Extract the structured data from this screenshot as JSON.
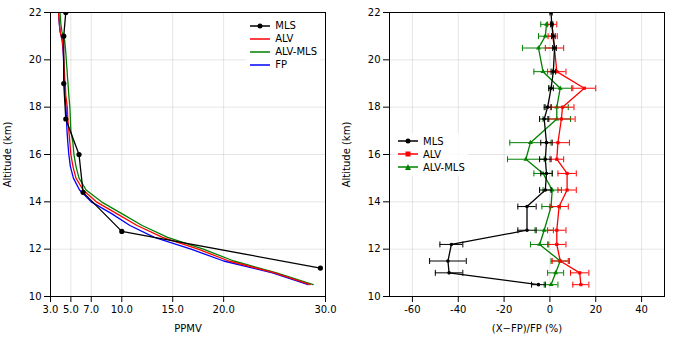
{
  "chart_data": [
    {
      "type": "line",
      "xlabel": "PPMV",
      "ylabel": "Altitude (km)",
      "xlim": [
        3.0,
        30.0
      ],
      "ylim": [
        10.0,
        22.0
      ],
      "xticks": [
        {
          "value": 3.0,
          "label": "3.0"
        },
        {
          "value": 5.0,
          "label": "5.0"
        },
        {
          "value": 7.0,
          "label": "7.0"
        },
        {
          "value": 10.0,
          "label": "10.0"
        },
        {
          "value": 15.0,
          "label": "15.0"
        },
        {
          "value": 20.0,
          "label": "20.0"
        },
        {
          "value": 30.0,
          "label": "30.0"
        }
      ],
      "yticks": [
        10,
        12,
        14,
        16,
        18,
        20,
        22
      ],
      "grid": true,
      "legend": "upper right",
      "series": [
        {
          "name": "MLS",
          "color": "black",
          "marker": "circle",
          "x": [
            4.5,
            4.3,
            4.3,
            4.5,
            5.8,
            6.2,
            10.0,
            29.5
          ],
          "y": [
            22.0,
            21.0,
            19.0,
            17.5,
            16.0,
            14.4,
            12.75,
            11.2
          ]
        },
        {
          "name": "ALV",
          "color": "red",
          "x": [
            28.5,
            25.0,
            20.5,
            17.5,
            14.0,
            11.5,
            9.5,
            7.5,
            6.2,
            5.5,
            5.2,
            5.0,
            4.9,
            4.8,
            4.7,
            4.65,
            4.5,
            4.45,
            4.4,
            4.38,
            4.35,
            4.32,
            4.3,
            4.28,
            4.25,
            4.22,
            4.18,
            4.05,
            3.95,
            3.88,
            3.82,
            3.8
          ],
          "y": [
            10.5,
            11.0,
            11.5,
            12.0,
            12.5,
            13.0,
            13.5,
            14.0,
            14.5,
            15.0,
            15.5,
            16.0,
            16.5,
            17.0,
            17.5,
            18.0,
            18.5,
            19.0,
            19.2,
            19.4,
            19.6,
            19.8,
            20.0,
            20.2,
            20.4,
            20.6,
            20.8,
            21.0,
            21.2,
            21.5,
            21.8,
            22.0
          ]
        },
        {
          "name": "ALV-MLS",
          "color": "green",
          "x": [
            28.8,
            25.2,
            21.0,
            18.0,
            14.5,
            12.0,
            10.0,
            8.0,
            6.5,
            5.8,
            5.5,
            5.3,
            5.2,
            5.0,
            4.95,
            4.9,
            4.8,
            4.72,
            4.68,
            4.65,
            4.62,
            4.58,
            4.55,
            4.52,
            4.48,
            4.44,
            4.4,
            4.25,
            4.12,
            4.02,
            3.97,
            3.94
          ],
          "y": [
            10.5,
            11.0,
            11.5,
            12.0,
            12.5,
            13.0,
            13.5,
            14.0,
            14.5,
            15.0,
            15.5,
            16.0,
            16.5,
            17.0,
            17.5,
            18.0,
            18.5,
            19.0,
            19.2,
            19.4,
            19.6,
            19.8,
            20.0,
            20.2,
            20.4,
            20.6,
            20.8,
            21.0,
            21.2,
            21.5,
            21.8,
            22.0
          ]
        },
        {
          "name": "FP",
          "color": "blue",
          "x": [
            28.3,
            24.8,
            20.0,
            16.8,
            13.2,
            10.8,
            9.0,
            7.0,
            5.85,
            5.25,
            4.95,
            4.8,
            4.7,
            4.62,
            4.57,
            4.52,
            4.42,
            4.38,
            4.34,
            4.33,
            4.31,
            4.3,
            4.28,
            4.26,
            4.23,
            4.19,
            4.15,
            4.05,
            3.94,
            3.87,
            3.82,
            3.8
          ],
          "y": [
            10.5,
            11.0,
            11.5,
            12.0,
            12.5,
            13.0,
            13.5,
            14.0,
            14.5,
            15.0,
            15.5,
            16.0,
            16.5,
            17.0,
            17.5,
            18.0,
            18.5,
            19.0,
            19.2,
            19.4,
            19.6,
            19.8,
            20.0,
            20.2,
            20.4,
            20.6,
            20.8,
            21.0,
            21.2,
            21.5,
            21.8,
            22.0
          ]
        }
      ]
    },
    {
      "type": "line",
      "xlabel": "(X−FP)/FP (%)",
      "ylabel": "Altitude (km)",
      "xlim": [
        -70,
        50
      ],
      "ylim": [
        10.0,
        22.0
      ],
      "xticks": [
        -60,
        -40,
        -20,
        0,
        20,
        40
      ],
      "yticks": [
        10,
        12,
        14,
        16,
        18,
        20,
        22
      ],
      "grid": true,
      "legend": "center left",
      "series": [
        {
          "name": "MLS",
          "color": "black",
          "marker": "circle",
          "x": [
            0.5,
            0.8,
            1.5,
            2.0,
            1.5,
            0.5,
            -1.0,
            -2.5,
            -1.5,
            -2.0,
            -1.5,
            -2.0,
            -10.0,
            -10.0,
            -43.0,
            -44.5,
            -44.0,
            -5.0
          ],
          "xerr": [
            0.5,
            0.5,
            0.8,
            0.8,
            1.0,
            1.0,
            1.5,
            2.0,
            2.5,
            2.5,
            2.5,
            2.5,
            4.0,
            4.0,
            5.0,
            8.0,
            6.0,
            3.0
          ],
          "y": [
            22.0,
            21.5,
            21.0,
            20.5,
            19.5,
            18.8,
            18.0,
            17.5,
            16.5,
            15.8,
            15.2,
            14.5,
            13.8,
            12.8,
            12.2,
            11.5,
            11.0,
            10.5
          ]
        },
        {
          "name": "ALV",
          "color": "red",
          "marker": "square",
          "x": [
            1.0,
            1.2,
            2.0,
            3.0,
            15.0,
            5.5,
            5.0,
            3.5,
            3.0,
            7.5,
            7.5,
            4.0,
            3.0,
            3.0,
            4.5,
            13.0,
            13.5
          ],
          "xerr": [
            2.0,
            2.0,
            4.0,
            4.0,
            5.0,
            5.0,
            6.0,
            5.0,
            3.0,
            4.0,
            4.0,
            4.0,
            4.0,
            4.0,
            3.5,
            4.0,
            3.5
          ],
          "y": [
            21.5,
            21.0,
            20.5,
            19.5,
            18.8,
            18.0,
            17.5,
            16.5,
            15.8,
            15.2,
            14.5,
            13.8,
            12.8,
            12.2,
            11.5,
            11.0,
            10.5
          ]
        },
        {
          "name": "ALV-MLS",
          "color": "green",
          "marker": "triangle",
          "x": [
            -1.5,
            -2.0,
            -5.0,
            -3.0,
            4.5,
            3.0,
            3.0,
            -8.5,
            -10.5,
            -3.0,
            1.0,
            0.5,
            -2.5,
            -4.5,
            4.5,
            2.5,
            0.5
          ],
          "xerr": [
            2.5,
            3.0,
            7.0,
            4.0,
            5.0,
            5.0,
            6.0,
            9.0,
            8.0,
            4.0,
            4.0,
            4.0,
            4.0,
            4.0,
            4.0,
            3.5,
            3.0
          ],
          "y": [
            21.5,
            21.0,
            20.5,
            19.5,
            18.8,
            18.0,
            17.5,
            16.5,
            15.8,
            15.2,
            14.5,
            13.8,
            12.8,
            12.2,
            11.5,
            11.0,
            10.5
          ]
        }
      ]
    }
  ]
}
